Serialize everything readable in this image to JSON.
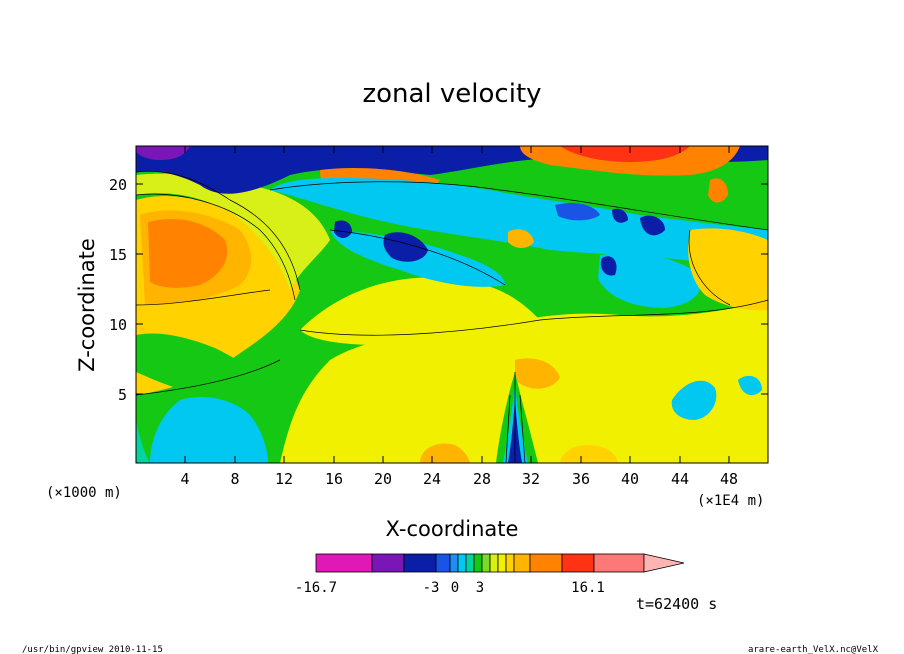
{
  "chart_data": {
    "type": "heatmap",
    "title": "zonal velocity",
    "xlabel": "X-coordinate",
    "ylabel": "Z-coordinate",
    "x_unit_note": "(×1E4 m)",
    "y_unit_note": "(×1000 m)",
    "x_ticks": [
      "4",
      "8",
      "12",
      "16",
      "20",
      "24",
      "28",
      "32",
      "36",
      "40",
      "44",
      "48"
    ],
    "y_ticks": [
      "5",
      "10",
      "15",
      "20"
    ],
    "xlim": [
      0,
      51.2
    ],
    "ylim": [
      0,
      22.6
    ],
    "colorbar": {
      "min_label": "-16.7",
      "max_label": "16.1",
      "mid_labels": [
        "-3",
        "0",
        "3"
      ],
      "colors": [
        "#e018b8",
        "#7a16b8",
        "#0a1ea8",
        "#1a54e6",
        "#1e8cf0",
        "#00c8f0",
        "#00d4a0",
        "#14c814",
        "#78dc28",
        "#d8f018",
        "#f0f000",
        "#ffd200",
        "#ffb400",
        "#ff8200",
        "#ff3214",
        "#ff7878",
        "#ffb4b4"
      ]
    },
    "time_label": "t=62400 s"
  },
  "footer": {
    "left": "/usr/bin/gpview  2010-11-15",
    "right": "arare-earth_VelX.nc@VelX"
  }
}
